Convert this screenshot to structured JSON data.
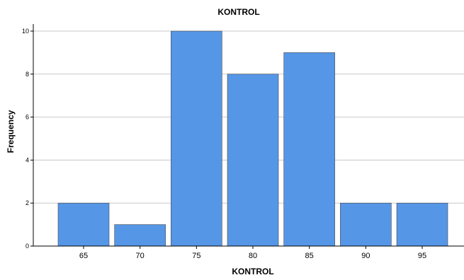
{
  "chart_data": {
    "type": "bar",
    "title": "KONTROL",
    "xlabel": "KONTROL",
    "ylabel": "Frequency",
    "categories": [
      "65",
      "70",
      "75",
      "80",
      "85",
      "90",
      "95"
    ],
    "values": [
      2,
      1,
      10,
      8,
      9,
      2,
      2
    ],
    "yticks": [
      "0",
      "2",
      "4",
      "6",
      "8",
      "10"
    ],
    "ylim": [
      0,
      10
    ],
    "grid": true,
    "legend": "none",
    "bar_color": "#5596e6"
  }
}
